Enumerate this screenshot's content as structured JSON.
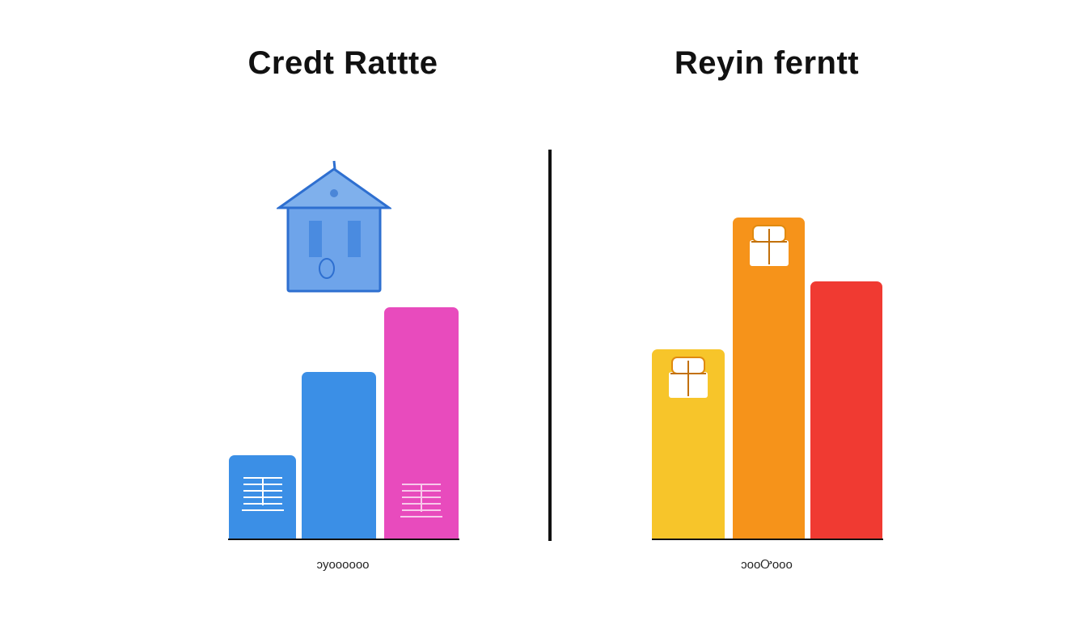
{
  "chart_data": [
    {
      "type": "bar",
      "title": "Credt Rattte",
      "xlabel": "ɔyoooooo",
      "ylim": [
        0,
        100
      ],
      "grid": false,
      "values": [
        26,
        52,
        72
      ],
      "colors": [
        "#3b8fe6",
        "#3b8fe6",
        "#e84bbd"
      ],
      "bar_icons": [
        "document-icon",
        "",
        "document-icon"
      ],
      "decoration_icon": "house-icon"
    },
    {
      "type": "bar",
      "title": "Reyin ferntt",
      "xlabel": "ɔooᎤooo",
      "ylim": [
        0,
        100
      ],
      "grid": false,
      "values": [
        59,
        100,
        80
      ],
      "colors": [
        "#f7c52a",
        "#f6931a",
        "#f03a32"
      ],
      "bar_icons": [
        "gift-icon",
        "gift-icon",
        ""
      ]
    }
  ]
}
